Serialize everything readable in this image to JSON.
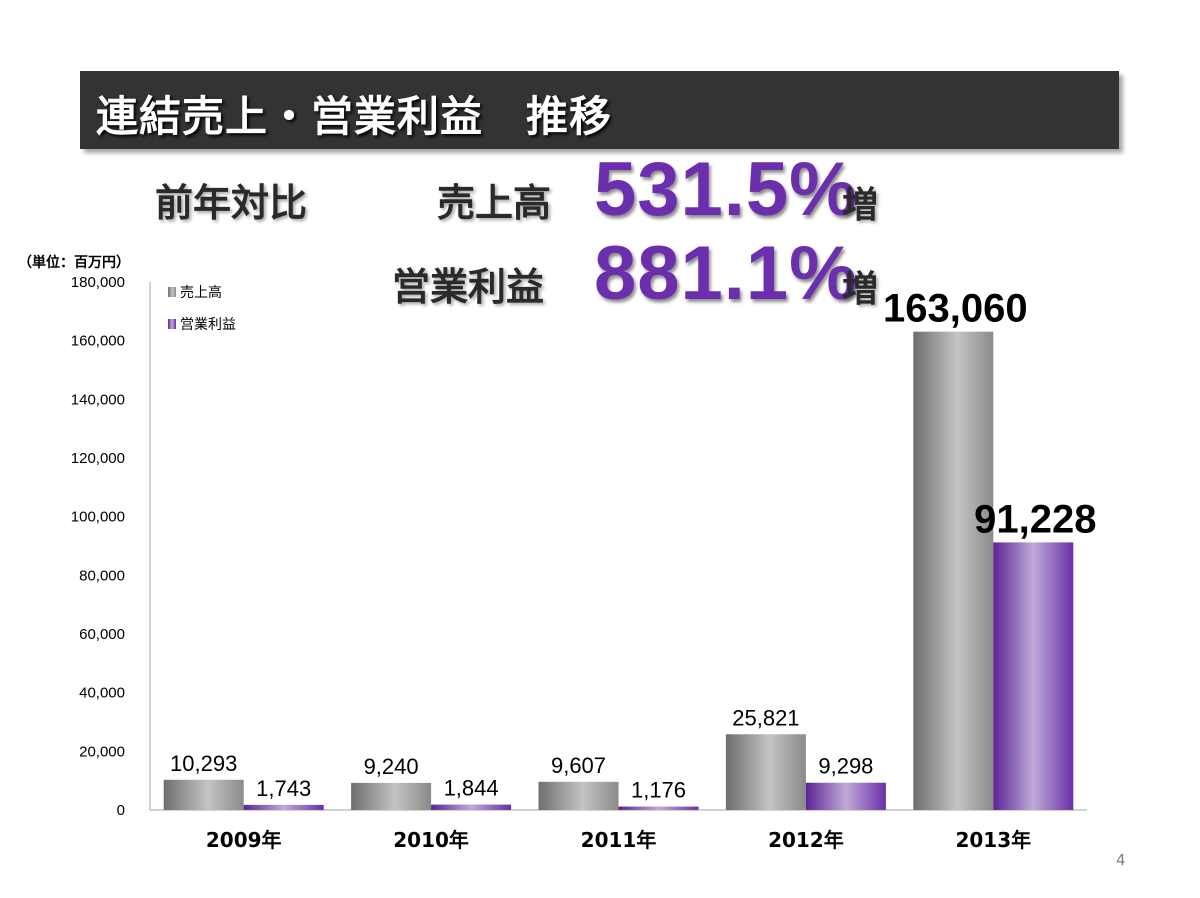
{
  "page": {
    "title": "連結売上・営業利益　推移",
    "yoy_label": "前年対比",
    "sales_label": "売上高",
    "sales_pct": "531.5%",
    "op_label": "営業利益",
    "op_pct": "881.1%",
    "increase_suffix": "増",
    "unit": "（単位：百万円）",
    "page_number": "4"
  },
  "chart_data": {
    "type": "bar",
    "categories": [
      "2009年",
      "2010年",
      "2011年",
      "2012年",
      "2013年"
    ],
    "series": [
      {
        "name": "売上高",
        "values": [
          10293,
          9240,
          9607,
          25821,
          163060
        ],
        "labels": [
          "10,293",
          "9,240",
          "9,607",
          "25,821",
          "163,060"
        ],
        "color": "#9a9a9a"
      },
      {
        "name": "営業利益",
        "values": [
          1743,
          1844,
          1176,
          9298,
          91228
        ],
        "labels": [
          "1,743",
          "1,844",
          "1,176",
          "9,298",
          "91,228"
        ],
        "color": "#7a3fb8"
      }
    ],
    "ylim": [
      0,
      180000
    ],
    "yticks": [
      0,
      20000,
      40000,
      60000,
      80000,
      100000,
      120000,
      140000,
      160000,
      180000
    ],
    "ytick_labels": [
      "0",
      "20,000",
      "40,000",
      "60,000",
      "80,000",
      "100,000",
      "120,000",
      "140,000",
      "160,000",
      "180,000"
    ],
    "grid": false,
    "legend": "top-left"
  }
}
